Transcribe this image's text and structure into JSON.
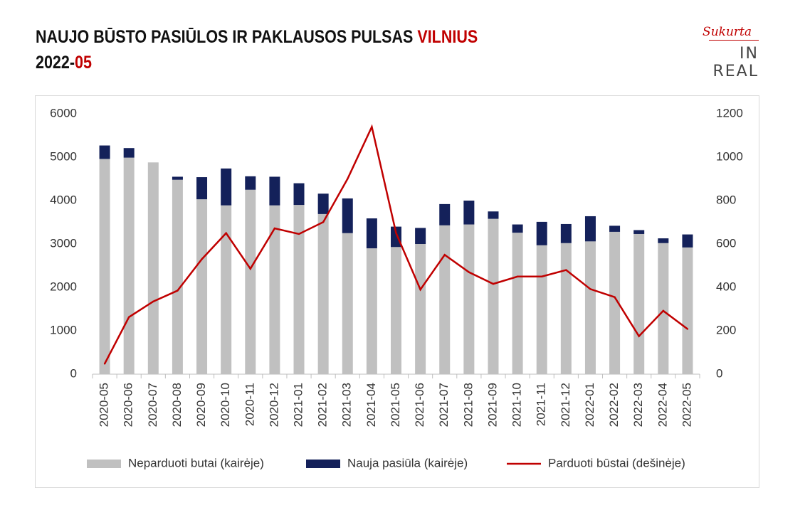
{
  "header": {
    "title_main": "NAUJO BŪSTO PASIŪLOS IR PAKLAUSOS PULSAS ",
    "title_city": "VILNIUS",
    "period_year": "2022-",
    "period_month": "05"
  },
  "logo": {
    "script": "Sukurta",
    "brand": "IN REAL"
  },
  "colors": {
    "unsold": "#c0c0c0",
    "new_supply": "#14215a",
    "sold": "#c00000",
    "accent": "#c00000"
  },
  "chart_data": {
    "type": "bar",
    "stacked": true,
    "categories": [
      "2020-05",
      "2020-06",
      "2020-07",
      "2020-08",
      "2020-09",
      "2020-10",
      "2020-11",
      "2020-12",
      "2021-01",
      "2021-02",
      "2021-03",
      "2021-04",
      "2021-05",
      "2021-06",
      "2021-07",
      "2021-08",
      "2021-09",
      "2021-10",
      "2021-11",
      "2021-12",
      "2022-01",
      "2022-02",
      "2022-03",
      "2022-04",
      "2022-05"
    ],
    "series": [
      {
        "name": "Neparduoti butai (kairėje)",
        "axis": "left",
        "type": "bar",
        "values": [
          4960,
          4990,
          4880,
          4480,
          4030,
          3890,
          4250,
          3890,
          3900,
          3690,
          3250,
          2900,
          2930,
          3000,
          3430,
          3450,
          3580,
          3260,
          2970,
          3020,
          3060,
          3280,
          3230,
          3020,
          2920
        ]
      },
      {
        "name": "Nauja pasiūla (kairėje)",
        "axis": "left",
        "type": "bar",
        "values": [
          310,
          220,
          0,
          70,
          510,
          850,
          310,
          660,
          500,
          470,
          800,
          690,
          470,
          370,
          490,
          550,
          170,
          190,
          540,
          440,
          580,
          140,
          90,
          110,
          300
        ]
      },
      {
        "name": "Parduoti būstai (dešinėje)",
        "axis": "right",
        "type": "line",
        "values": [
          48,
          263,
          335,
          385,
          530,
          650,
          486,
          672,
          646,
          701,
          900,
          1140,
          650,
          390,
          550,
          470,
          416,
          450,
          450,
          480,
          392,
          355,
          175,
          292,
          208
        ]
      }
    ],
    "y_left": {
      "min": 0,
      "max": 6000,
      "ticks": [
        "0",
        "1000",
        "2000",
        "3000",
        "4000",
        "5000",
        "6000"
      ]
    },
    "y_right": {
      "min": 0,
      "max": 1200,
      "ticks": [
        "0",
        "200",
        "400",
        "600",
        "800",
        "1000",
        "1200"
      ]
    },
    "grid": false,
    "legend_position": "bottom"
  }
}
